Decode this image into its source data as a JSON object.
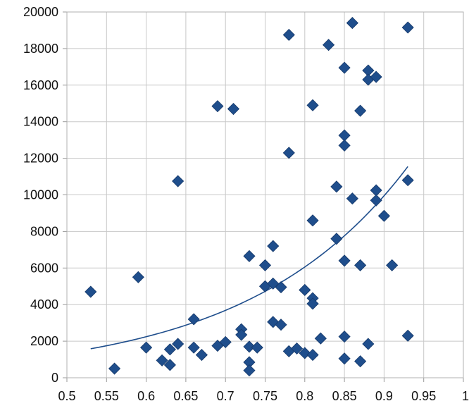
{
  "chart_data": {
    "type": "scatter",
    "title": "",
    "xlabel": "",
    "ylabel": "",
    "xlim": [
      0.5,
      1
    ],
    "ylim": [
      0,
      20000
    ],
    "x_ticks": [
      0.5,
      0.55,
      0.6,
      0.65,
      0.7,
      0.75,
      0.8,
      0.85,
      0.9,
      0.95,
      1
    ],
    "x_tick_labels": [
      "0.5",
      "0.55",
      "0.6",
      "0.65",
      "0.7",
      "0.75",
      "0.8",
      "0.85",
      "0.9",
      "0.95",
      "1"
    ],
    "y_ticks": [
      0,
      2000,
      4000,
      6000,
      8000,
      10000,
      12000,
      14000,
      16000,
      18000,
      20000
    ],
    "y_tick_labels": [
      "0",
      "2000",
      "4000",
      "6000",
      "8000",
      "10000",
      "12000",
      "14000",
      "16000",
      "18000",
      "20000"
    ],
    "grid": {
      "horizontal": true,
      "vertical": true
    },
    "legend": "none",
    "colors": {
      "marker": "#1f4e8c",
      "trendline": "#1f4e8c",
      "grid": "#c8c8c8"
    },
    "marker_shape": "diamond",
    "series": [
      {
        "points": [
          [
            0.53,
            4700
          ],
          [
            0.56,
            500
          ],
          [
            0.59,
            5500
          ],
          [
            0.6,
            1650
          ],
          [
            0.62,
            950
          ],
          [
            0.63,
            1550
          ],
          [
            0.63,
            700
          ],
          [
            0.64,
            1850
          ],
          [
            0.64,
            10750
          ],
          [
            0.66,
            3200
          ],
          [
            0.66,
            1650
          ],
          [
            0.67,
            1250
          ],
          [
            0.69,
            1750
          ],
          [
            0.69,
            14850
          ],
          [
            0.7,
            1950
          ],
          [
            0.71,
            14700
          ],
          [
            0.72,
            2650
          ],
          [
            0.72,
            2350
          ],
          [
            0.73,
            6650
          ],
          [
            0.73,
            1700
          ],
          [
            0.73,
            850
          ],
          [
            0.73,
            400
          ],
          [
            0.74,
            1650
          ],
          [
            0.75,
            6150
          ],
          [
            0.75,
            5000
          ],
          [
            0.76,
            7200
          ],
          [
            0.76,
            5150
          ],
          [
            0.76,
            3050
          ],
          [
            0.77,
            4950
          ],
          [
            0.77,
            2900
          ],
          [
            0.78,
            18750
          ],
          [
            0.78,
            12300
          ],
          [
            0.78,
            1450
          ],
          [
            0.79,
            1600
          ],
          [
            0.8,
            4800
          ],
          [
            0.8,
            1350
          ],
          [
            0.81,
            14900
          ],
          [
            0.81,
            8600
          ],
          [
            0.81,
            4350
          ],
          [
            0.81,
            4050
          ],
          [
            0.81,
            1250
          ],
          [
            0.82,
            2150
          ],
          [
            0.83,
            18200
          ],
          [
            0.84,
            10450
          ],
          [
            0.84,
            7600
          ],
          [
            0.85,
            16950
          ],
          [
            0.85,
            13250
          ],
          [
            0.85,
            12700
          ],
          [
            0.85,
            6400
          ],
          [
            0.85,
            2250
          ],
          [
            0.85,
            1050
          ],
          [
            0.86,
            19400
          ],
          [
            0.86,
            9800
          ],
          [
            0.87,
            14600
          ],
          [
            0.87,
            6150
          ],
          [
            0.87,
            900
          ],
          [
            0.88,
            16800
          ],
          [
            0.88,
            16300
          ],
          [
            0.88,
            1850
          ],
          [
            0.89,
            16450
          ],
          [
            0.89,
            10250
          ],
          [
            0.89,
            9700
          ],
          [
            0.9,
            8850
          ],
          [
            0.91,
            6150
          ],
          [
            0.93,
            19150
          ],
          [
            0.93,
            10800
          ],
          [
            0.93,
            2300
          ]
        ]
      }
    ],
    "trendline": {
      "type": "exponential",
      "x_range": [
        0.53,
        0.93
      ],
      "points": [
        [
          0.53,
          1600
        ],
        [
          0.58,
          2040
        ],
        [
          0.63,
          2600
        ],
        [
          0.68,
          3330
        ],
        [
          0.73,
          4250
        ],
        [
          0.78,
          5440
        ],
        [
          0.83,
          6950
        ],
        [
          0.88,
          8880
        ],
        [
          0.93,
          11900
        ]
      ]
    }
  }
}
